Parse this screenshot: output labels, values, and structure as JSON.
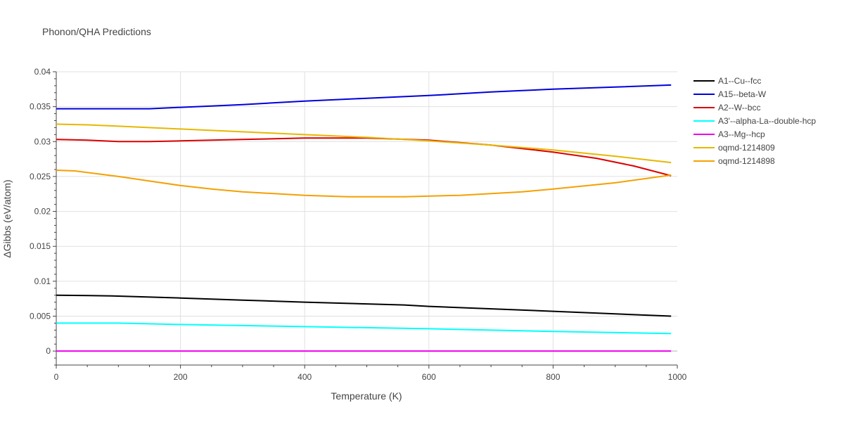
{
  "chart_data": {
    "type": "line",
    "title": "Phonon/QHA Predictions",
    "xlabel": "Temperature (K)",
    "ylabel": "ΔGibbs (eV/atom)",
    "xlim": [
      0,
      1000
    ],
    "ylim": [
      -0.002,
      0.04
    ],
    "xticks": [
      0,
      200,
      400,
      600,
      800,
      1000
    ],
    "xtick_labels": [
      "0",
      "200",
      "400",
      "600",
      "800",
      "1000"
    ],
    "yticks": [
      0,
      0.005,
      0.01,
      0.015,
      0.02,
      0.025,
      0.03,
      0.035,
      0.04
    ],
    "ytick_labels": [
      "0",
      "0.005",
      "0.01",
      "0.015",
      "0.02",
      "0.025",
      "0.03",
      "0.035",
      "0.04"
    ],
    "grid": true,
    "legend_position": "top-right",
    "series": [
      {
        "name": "A1--Cu--fcc",
        "color": "#000000",
        "x": [
          0,
          90,
          200,
          300,
          400,
          560,
          600,
          800,
          990
        ],
        "y": [
          0.008,
          0.0079,
          0.0076,
          0.0073,
          0.007,
          0.0066,
          0.0064,
          0.0057,
          0.005
        ]
      },
      {
        "name": "A15--beta-W",
        "color": "#0000dd",
        "x": [
          0,
          150,
          200,
          250,
          300,
          400,
          500,
          600,
          700,
          750,
          800,
          900,
          990
        ],
        "y": [
          0.0347,
          0.0347,
          0.0349,
          0.0351,
          0.0353,
          0.0358,
          0.0362,
          0.0366,
          0.0371,
          0.0373,
          0.0375,
          0.0378,
          0.0381
        ]
      },
      {
        "name": "A2--W--bcc",
        "color": "#dd0000",
        "x": [
          0,
          50,
          100,
          150,
          200,
          300,
          400,
          500,
          600,
          700,
          750,
          800,
          870,
          930,
          990
        ],
        "y": [
          0.0303,
          0.0302,
          0.03,
          0.03,
          0.0301,
          0.0303,
          0.0305,
          0.0305,
          0.0302,
          0.0295,
          0.029,
          0.0285,
          0.0276,
          0.0265,
          0.0251
        ]
      },
      {
        "name": "A3'--alpha-La--double-hcp",
        "color": "#00ffff",
        "x": [
          0,
          100,
          200,
          400,
          600,
          800,
          990
        ],
        "y": [
          0.004,
          0.004,
          0.0038,
          0.0035,
          0.0032,
          0.0028,
          0.0025
        ]
      },
      {
        "name": "A3--Mg--hcp",
        "color": "#ee00ee",
        "x": [
          0,
          990
        ],
        "y": [
          0.0,
          0.0
        ]
      },
      {
        "name": "oqmd-1214809",
        "color": "#e6b800",
        "x": [
          0,
          50,
          100,
          200,
          300,
          400,
          500,
          600,
          700,
          800,
          900,
          990
        ],
        "y": [
          0.0325,
          0.0324,
          0.0322,
          0.0318,
          0.0314,
          0.031,
          0.0306,
          0.0301,
          0.0295,
          0.0288,
          0.0279,
          0.027
        ]
      },
      {
        "name": "oqmd-1214898",
        "color": "#f5a000",
        "x": [
          0,
          30,
          100,
          200,
          250,
          300,
          400,
          470,
          560,
          650,
          750,
          800,
          900,
          990
        ],
        "y": [
          0.0259,
          0.0258,
          0.025,
          0.0237,
          0.0232,
          0.0228,
          0.0223,
          0.0221,
          0.0221,
          0.0223,
          0.0228,
          0.0232,
          0.0241,
          0.0252
        ]
      }
    ]
  }
}
